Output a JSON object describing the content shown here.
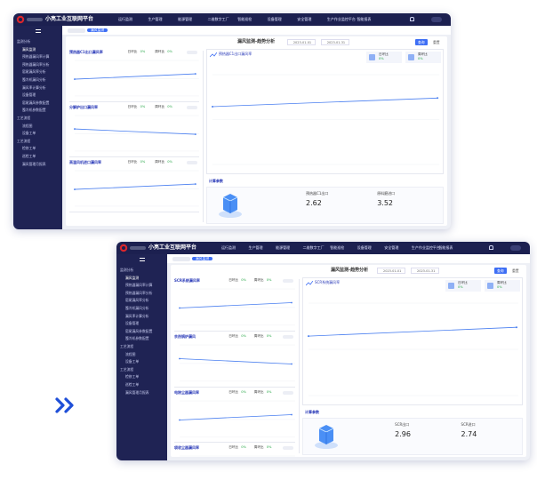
{
  "top": {
    "brand": "小亮工业互联网平台",
    "nav": [
      "运行监测",
      "生产管理",
      "能源管理",
      "二维数字工厂",
      "智能巡检",
      "设备管理",
      "安全管理",
      "生产作业监控平台",
      "智能报表"
    ],
    "sidebar": [
      "监测分析",
      "漏风监测",
      "预热器漏风率计算",
      "预热器漏风率分析",
      "窑尾漏风率分析",
      "篦冷机漏风分析",
      "漏风率计算分析",
      "设备管理",
      "窑尾漏风参数配置",
      "篦冷机参数配置",
      "工艺流程",
      "流程图",
      "设备工单",
      "工艺流程",
      "检修工单",
      "巡检工单",
      "漏风管理月报表"
    ],
    "tab": "漏风监测",
    "page_title": "漏风监测-趋势分析",
    "date_start": "2023-01-01",
    "date_end": "2023-01-31",
    "query": "查询",
    "reset": "重置",
    "panels": [
      {
        "title": "预热器C1出口漏风率",
        "day_label": "日环比",
        "day_value": "0%",
        "week_label": "周环比",
        "week_value": "0%"
      },
      {
        "title": "分解炉出口漏风率",
        "day_label": "日环比",
        "day_value": "0%",
        "week_label": "周环比",
        "week_value": "0%"
      },
      {
        "title": "高温风机进口漏风率",
        "day_label": "日环比",
        "day_value": "0%",
        "week_label": "周环比",
        "week_value": "0%"
      }
    ],
    "trend_title": "预热器C1出口漏风率",
    "stats": [
      {
        "label": "日环比",
        "value": "0%"
      },
      {
        "label": "周环比",
        "value": "0%"
      }
    ],
    "params_title": "计算参数",
    "params": [
      {
        "label": "预热器C1出口",
        "value": 2.62
      },
      {
        "label": "原料磨进口",
        "value": 3.52
      }
    ]
  },
  "bottom": {
    "brand": "小亮工业互联网平台",
    "nav": [
      "运行监测",
      "生产管理",
      "能源管理",
      "二维数字工厂",
      "智能巡检",
      "设备管理",
      "安全管理",
      "生产作业监控平台",
      "智能报表"
    ],
    "sidebar": [
      "监测分析",
      "漏风监测",
      "预热器漏风率计算",
      "预热器漏风率分析",
      "窑尾漏风率分析",
      "篦冷机漏风分析",
      "漏风率计算分析",
      "设备管理",
      "窑尾漏风参数配置",
      "篦冷机参数配置",
      "工艺流程",
      "流程图",
      "设备工单",
      "工艺流程",
      "检修工单",
      "巡检工单",
      "漏风管理月报表"
    ],
    "tab": "漏风监测",
    "page_title": "漏风监测-趋势分析",
    "date_start": "2023-01-01",
    "date_end": "2023-01-31",
    "query": "查询",
    "reset": "重置",
    "panels": [
      {
        "title": "SCR系统漏风率",
        "day_label": "日环比",
        "day_value": "0%",
        "week_label": "周环比",
        "week_value": "0%"
      },
      {
        "title": "余热锅炉漏风",
        "day_label": "日环比",
        "day_value": "0%",
        "week_label": "周环比",
        "week_value": "0%"
      },
      {
        "title": "电除尘器漏风率",
        "day_label": "日环比",
        "day_value": "0%",
        "week_label": "周环比",
        "week_value": "0%"
      },
      {
        "title": "袋收尘器漏风率",
        "day_label": "日环比",
        "day_value": "0%",
        "week_label": "周环比",
        "week_value": "0%"
      }
    ],
    "trend_title": "SCR系统漏风率",
    "stats": [
      {
        "label": "日环比",
        "value": "0%"
      },
      {
        "label": "周环比",
        "value": "0%"
      }
    ],
    "params_title": "计算参数",
    "params": [
      {
        "label": "SCR出口",
        "value": 2.96
      },
      {
        "label": "SCR进口",
        "value": 2.74
      }
    ]
  }
}
